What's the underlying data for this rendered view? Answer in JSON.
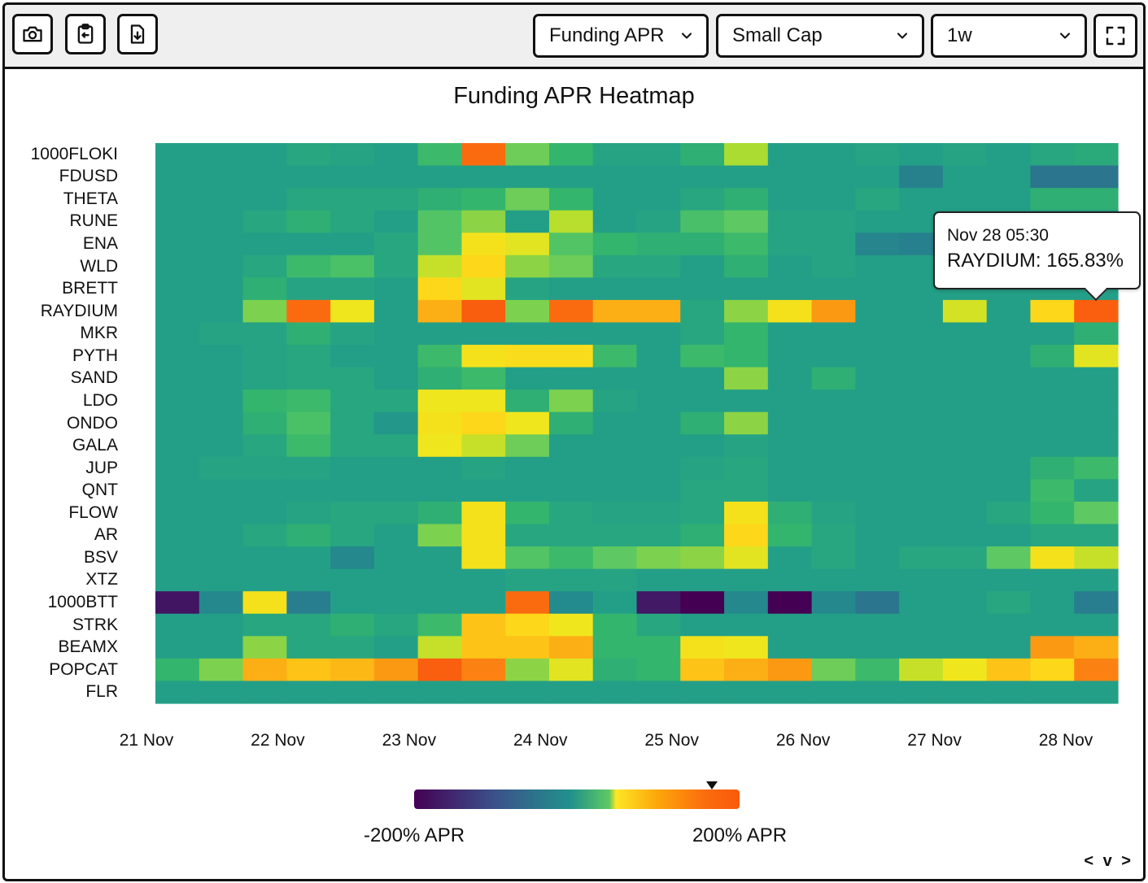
{
  "toolbar": {
    "metric_select": "Funding APR",
    "cap_select": "Small Cap",
    "range_select": "1w"
  },
  "chart_data": {
    "type": "heatmap",
    "title": "Funding APR Heatmap",
    "rows": [
      "1000FLOKI",
      "FDUSD",
      "THETA",
      "RUNE",
      "ENA",
      "WLD",
      "BRETT",
      "RAYDIUM",
      "MKR",
      "PYTH",
      "SAND",
      "LDO",
      "ONDO",
      "GALA",
      "JUP",
      "QNT",
      "FLOW",
      "AR",
      "BSV",
      "XTZ",
      "1000BTT",
      "STRK",
      "BEAMX",
      "POPCAT",
      "FLR"
    ],
    "x_tick_labels": [
      "21 Nov",
      "22 Nov",
      "23 Nov",
      "24 Nov",
      "25 Nov",
      "26 Nov",
      "27 Nov",
      "28 Nov"
    ],
    "color_scale": {
      "min": -200,
      "max": 200,
      "min_label": "-200% APR",
      "max_label": "200% APR",
      "colormap": "viridis-to-orange",
      "marker_value": 165.83
    },
    "values": [
      [
        11,
        11,
        11,
        16,
        14,
        11,
        30,
        160,
        50,
        26,
        14,
        14,
        22,
        70,
        11,
        11,
        14,
        11,
        14,
        11,
        16,
        18
      ],
      [
        11,
        11,
        11,
        11,
        11,
        11,
        11,
        11,
        11,
        11,
        11,
        11,
        11,
        11,
        11,
        11,
        11,
        -25,
        11,
        11,
        -45,
        -45
      ],
      [
        11,
        11,
        11,
        16,
        16,
        16,
        22,
        26,
        50,
        26,
        11,
        11,
        16,
        22,
        11,
        11,
        16,
        11,
        11,
        11,
        22,
        22
      ],
      [
        11,
        11,
        16,
        22,
        16,
        11,
        40,
        60,
        11,
        75,
        11,
        14,
        35,
        45,
        14,
        14,
        11,
        11,
        11,
        11,
        11,
        11
      ],
      [
        11,
        11,
        11,
        11,
        11,
        16,
        40,
        100,
        90,
        40,
        26,
        22,
        22,
        30,
        14,
        14,
        -20,
        -28,
        11,
        11,
        11,
        11
      ],
      [
        11,
        11,
        16,
        30,
        36,
        16,
        80,
        110,
        60,
        50,
        16,
        16,
        11,
        22,
        11,
        14,
        11,
        11,
        11,
        11,
        11,
        11
      ],
      [
        11,
        11,
        22,
        14,
        14,
        11,
        110,
        90,
        14,
        11,
        11,
        11,
        11,
        11,
        11,
        11,
        11,
        11,
        11,
        11,
        11,
        11
      ],
      [
        11,
        11,
        55,
        160,
        95,
        11,
        130,
        170,
        55,
        160,
        130,
        130,
        16,
        60,
        100,
        140,
        11,
        11,
        85,
        11,
        110,
        165.83
      ],
      [
        11,
        14,
        14,
        22,
        14,
        11,
        11,
        11,
        11,
        11,
        11,
        11,
        16,
        26,
        11,
        11,
        11,
        11,
        11,
        11,
        11,
        22
      ],
      [
        11,
        11,
        14,
        16,
        11,
        11,
        30,
        100,
        105,
        105,
        30,
        11,
        30,
        26,
        11,
        11,
        11,
        11,
        11,
        11,
        22,
        90
      ],
      [
        11,
        11,
        14,
        16,
        16,
        11,
        22,
        30,
        11,
        11,
        11,
        11,
        11,
        60,
        11,
        22,
        11,
        11,
        11,
        11,
        11,
        11
      ],
      [
        11,
        11,
        26,
        30,
        16,
        16,
        95,
        95,
        22,
        55,
        14,
        11,
        11,
        11,
        11,
        11,
        11,
        11,
        11,
        11,
        11,
        11
      ],
      [
        11,
        11,
        22,
        36,
        16,
        5,
        100,
        110,
        95,
        22,
        11,
        11,
        22,
        60,
        11,
        11,
        11,
        11,
        11,
        11,
        11,
        11
      ],
      [
        11,
        11,
        16,
        30,
        16,
        16,
        95,
        80,
        50,
        11,
        11,
        11,
        11,
        14,
        11,
        11,
        11,
        11,
        11,
        11,
        11,
        11
      ],
      [
        11,
        14,
        14,
        14,
        11,
        11,
        11,
        14,
        11,
        11,
        11,
        11,
        14,
        16,
        11,
        11,
        11,
        11,
        11,
        11,
        22,
        30
      ],
      [
        11,
        11,
        11,
        11,
        11,
        11,
        11,
        11,
        11,
        11,
        11,
        11,
        16,
        16,
        11,
        11,
        11,
        11,
        11,
        11,
        30,
        14
      ],
      [
        11,
        11,
        11,
        14,
        16,
        16,
        22,
        100,
        26,
        16,
        14,
        14,
        16,
        100,
        22,
        14,
        11,
        11,
        11,
        16,
        26,
        45
      ],
      [
        11,
        11,
        16,
        22,
        16,
        11,
        55,
        100,
        16,
        16,
        16,
        16,
        22,
        110,
        26,
        16,
        11,
        11,
        11,
        11,
        16,
        16
      ],
      [
        11,
        11,
        11,
        11,
        -15,
        11,
        11,
        100,
        40,
        30,
        45,
        55,
        60,
        90,
        11,
        16,
        11,
        16,
        16,
        45,
        100,
        80
      ],
      [
        11,
        11,
        11,
        11,
        11,
        11,
        11,
        11,
        14,
        14,
        14,
        11,
        11,
        11,
        11,
        11,
        11,
        11,
        11,
        11,
        11,
        11
      ],
      [
        -175,
        -15,
        100,
        -30,
        11,
        11,
        11,
        11,
        160,
        -10,
        11,
        -170,
        -200,
        -15,
        -200,
        -15,
        -45,
        11,
        11,
        16,
        11,
        -30
      ],
      [
        11,
        11,
        16,
        16,
        22,
        16,
        30,
        120,
        110,
        95,
        26,
        16,
        11,
        11,
        11,
        11,
        11,
        11,
        11,
        11,
        11,
        11
      ],
      [
        11,
        11,
        60,
        16,
        16,
        11,
        80,
        120,
        120,
        130,
        26,
        26,
        100,
        95,
        11,
        11,
        11,
        11,
        11,
        11,
        140,
        130
      ],
      [
        26,
        55,
        130,
        120,
        125,
        140,
        165,
        150,
        60,
        90,
        22,
        26,
        120,
        130,
        140,
        50,
        30,
        80,
        95,
        120,
        110,
        150
      ],
      [
        11,
        11,
        11,
        11,
        11,
        11,
        11,
        11,
        11,
        11,
        11,
        11,
        11,
        11,
        11,
        11,
        11,
        11,
        11,
        11,
        11,
        11
      ]
    ]
  },
  "tooltip": {
    "time": "Nov 28 05:30",
    "value": "RAYDIUM: 165.83%"
  },
  "nav": {
    "arrows": "< v >"
  }
}
